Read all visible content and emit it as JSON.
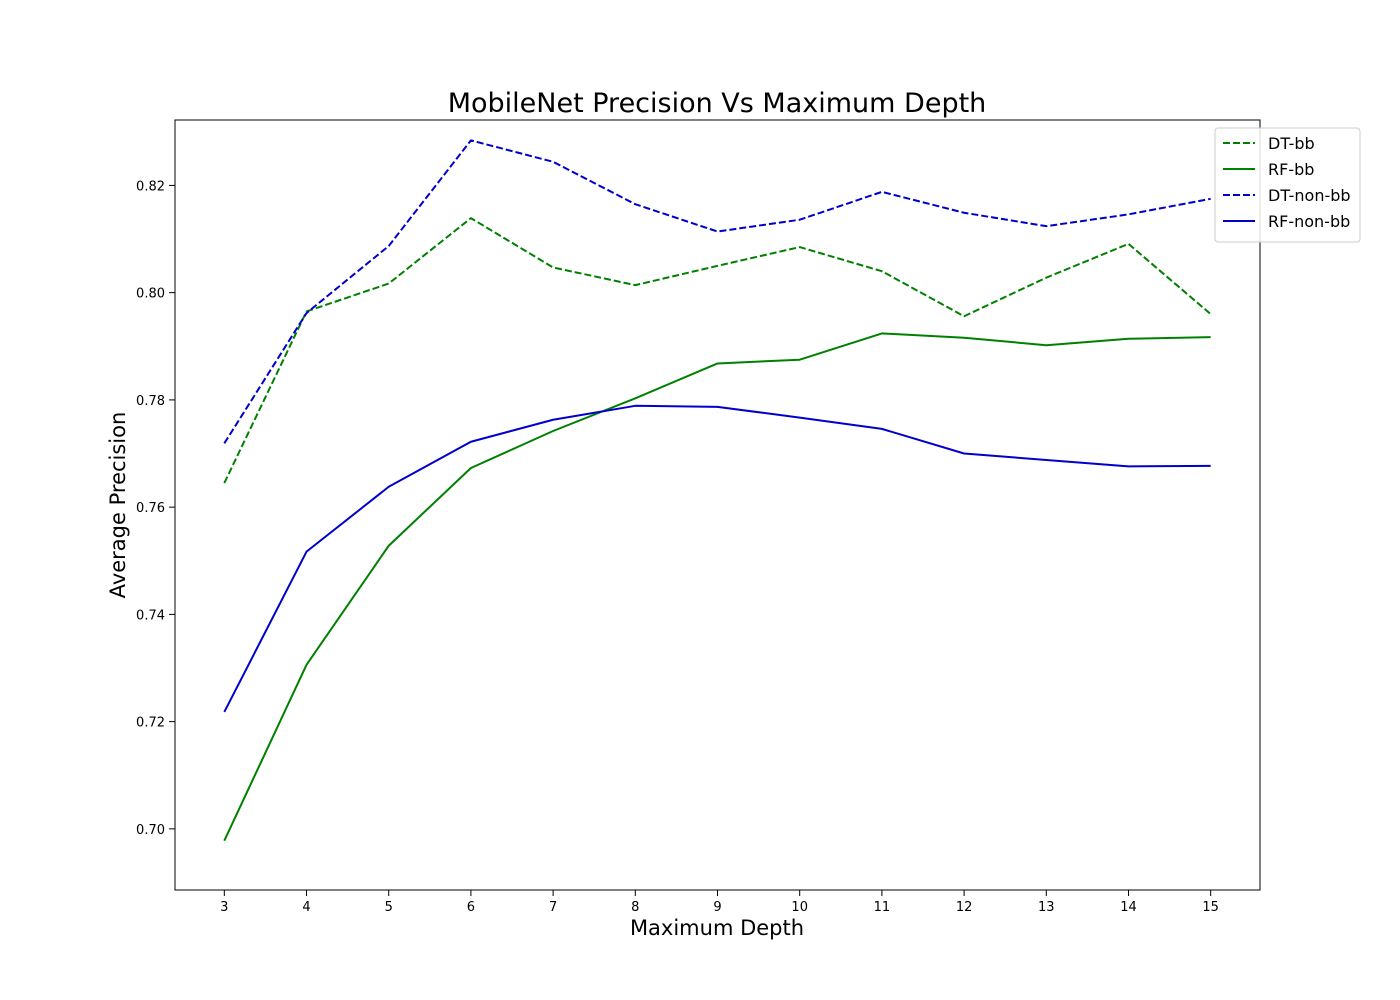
{
  "chart_data": {
    "type": "line",
    "title": "MobileNet Precision Vs Maximum Depth",
    "xlabel": "Maximum Depth",
    "ylabel": "Average Precision",
    "x": [
      3,
      4,
      5,
      6,
      7,
      8,
      9,
      10,
      11,
      12,
      13,
      14,
      15
    ],
    "xlim": [
      2.4,
      15.6
    ],
    "ylim": [
      0.6886,
      0.8322
    ],
    "yticks": [
      0.7,
      0.72,
      0.74,
      0.76,
      0.78,
      0.8,
      0.82
    ],
    "ytick_labels": [
      "0.70",
      "0.72",
      "0.74",
      "0.76",
      "0.78",
      "0.80",
      "0.82"
    ],
    "xticks": [
      3,
      4,
      5,
      6,
      7,
      8,
      9,
      10,
      11,
      12,
      13,
      14,
      15
    ],
    "xtick_labels": [
      "3",
      "4",
      "5",
      "6",
      "7",
      "8",
      "9",
      "10",
      "11",
      "12",
      "13",
      "14",
      "15"
    ],
    "grid": false,
    "legend_position": "top-right",
    "series": [
      {
        "name": "DT-bb",
        "color": "#008000",
        "style": "dashed",
        "values": [
          0.7645,
          0.7965,
          0.8017,
          0.8139,
          0.8047,
          0.8014,
          0.805,
          0.8085,
          0.804,
          0.7956,
          0.8028,
          0.8091,
          0.796
        ]
      },
      {
        "name": "RF-bb",
        "color": "#008000",
        "style": "solid",
        "values": [
          0.6978,
          0.7306,
          0.7528,
          0.7673,
          0.7742,
          0.7803,
          0.7868,
          0.7875,
          0.7924,
          0.7916,
          0.7902,
          0.7914,
          0.7917
        ]
      },
      {
        "name": "DT-non-bb",
        "color": "#0000cd",
        "style": "dashed",
        "values": [
          0.7719,
          0.7962,
          0.8087,
          0.8284,
          0.8244,
          0.8165,
          0.8114,
          0.8136,
          0.8188,
          0.8149,
          0.8124,
          0.8146,
          0.8175
        ]
      },
      {
        "name": "RF-non-bb",
        "color": "#0000cd",
        "style": "solid",
        "values": [
          0.7218,
          0.7517,
          0.7638,
          0.7722,
          0.7763,
          0.7789,
          0.7787,
          0.7767,
          0.7746,
          0.77,
          0.7688,
          0.7676,
          0.7677
        ]
      }
    ]
  }
}
